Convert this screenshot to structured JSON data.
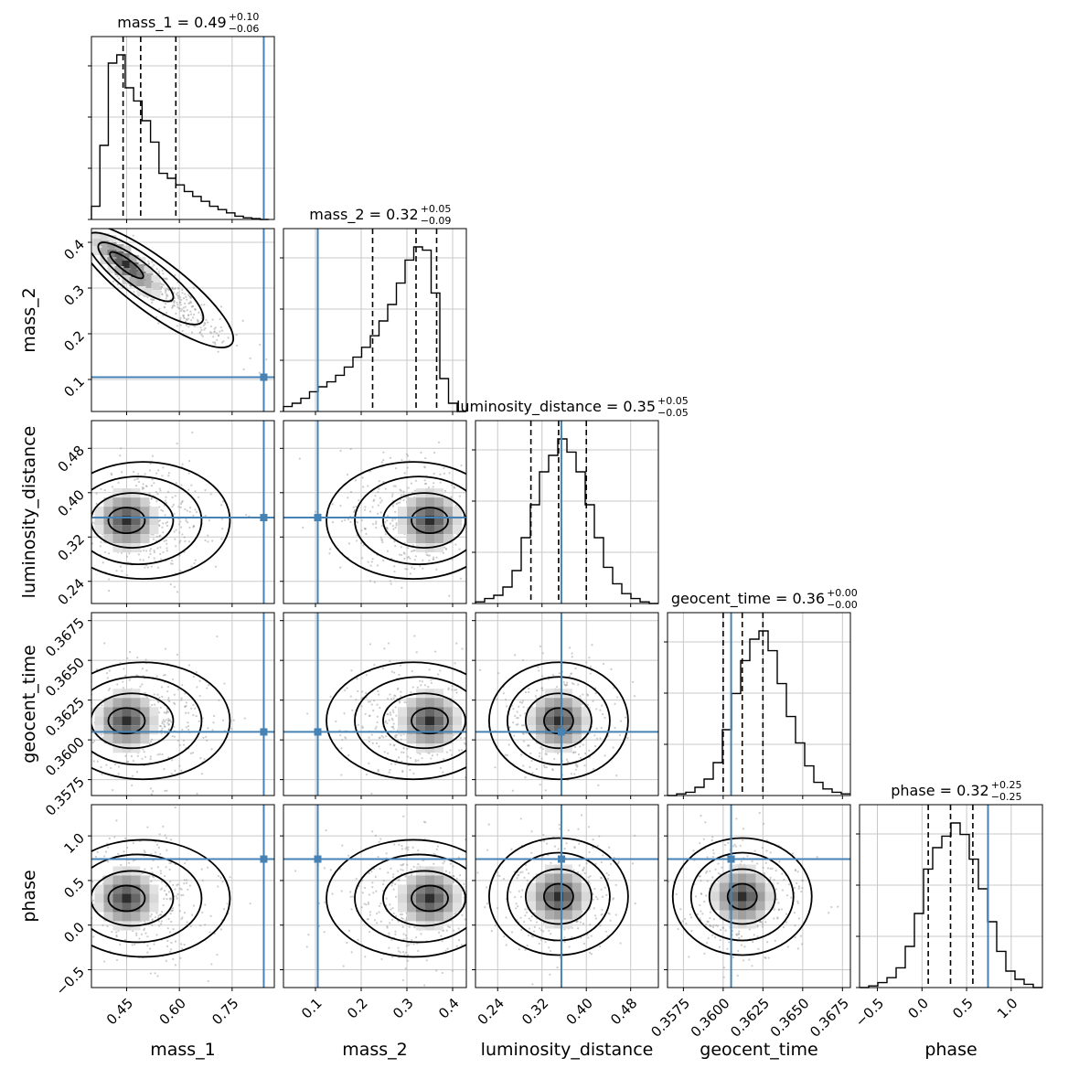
{
  "chart_data": {
    "type": "corner",
    "parameters": [
      "mass_1",
      "mass_2",
      "luminosity_distance",
      "geocent_time",
      "phase"
    ],
    "truth_color": "#4682b4",
    "grid": true,
    "titles": [
      {
        "param": "mass_1",
        "text": "mass_1 = 0.49",
        "plus": "+0.10",
        "minus": "−0.06"
      },
      {
        "param": "mass_2",
        "text": "mass_2 = 0.32",
        "plus": "+0.05",
        "minus": "−0.09"
      },
      {
        "param": "luminosity_distance",
        "text": "luminosity_distance = 0.35",
        "plus": "+0.05",
        "minus": "−0.05"
      },
      {
        "param": "geocent_time",
        "text": "geocent_time = 0.36",
        "plus": "+0.00",
        "minus": "−0.00"
      },
      {
        "param": "phase",
        "text": "phase = 0.32",
        "plus": "+0.25",
        "minus": "−0.25"
      }
    ],
    "ranges": [
      [
        0.35,
        0.87
      ],
      [
        0.03,
        0.43
      ],
      [
        0.2,
        0.53
      ],
      [
        0.3565,
        0.368
      ],
      [
        -0.7,
        1.35
      ]
    ],
    "truths": [
      0.84,
      0.105,
      0.355,
      0.3605,
      0.74
    ],
    "quantiles": [
      [
        0.44,
        0.49,
        0.59
      ],
      [
        0.225,
        0.32,
        0.365
      ],
      [
        0.3,
        0.35,
        0.4
      ],
      [
        0.36,
        0.3612,
        0.3625
      ],
      [
        0.07,
        0.32,
        0.57
      ]
    ],
    "ticks": [
      [
        "0.45",
        "0.60",
        "0.75"
      ],
      [
        "0.1",
        "0.2",
        "0.3",
        "0.4"
      ],
      [
        "0.24",
        "0.32",
        "0.40",
        "0.48"
      ],
      [
        "0.3575",
        "0.3600",
        "0.3625",
        "0.3650",
        "0.3675"
      ],
      [
        "−0.5",
        "0.0",
        "0.5",
        "1.0"
      ]
    ],
    "axis_labels": {
      "x": [
        "mass_1",
        "mass_2",
        "luminosity_distance",
        "geocent_time",
        "phase"
      ],
      "y": [
        "mass_2",
        "luminosity_distance",
        "geocent_time",
        "phase"
      ]
    },
    "histograms": [
      {
        "param": "mass_1",
        "edges_start": 0.35,
        "bin_width": 0.024,
        "counts": [
          0.08,
          0.45,
          0.95,
          1.0,
          0.8,
          0.72,
          0.6,
          0.47,
          0.28,
          0.25,
          0.21,
          0.17,
          0.14,
          0.11,
          0.08,
          0.06,
          0.04,
          0.02,
          0.01,
          0.005,
          0.0
        ]
      },
      {
        "param": "mass_2",
        "edges_start": 0.03,
        "bin_width": 0.019,
        "counts": [
          0.03,
          0.05,
          0.08,
          0.12,
          0.15,
          0.18,
          0.22,
          0.27,
          0.33,
          0.39,
          0.46,
          0.55,
          0.65,
          0.78,
          0.92,
          1.0,
          0.98,
          0.72,
          0.2,
          0.05,
          0.0
        ]
      },
      {
        "param": "luminosity_distance",
        "edges_start": 0.2,
        "bin_width": 0.0165,
        "counts": [
          0.01,
          0.03,
          0.05,
          0.1,
          0.2,
          0.4,
          0.6,
          0.8,
          0.9,
          1.0,
          0.92,
          0.8,
          0.6,
          0.4,
          0.22,
          0.12,
          0.06,
          0.03,
          0.01,
          0.0
        ]
      },
      {
        "param": "geocent_time",
        "edges_start": 0.3565,
        "bin_width": 0.000575,
        "counts": [
          0.0,
          0.01,
          0.02,
          0.05,
          0.1,
          0.2,
          0.4,
          0.62,
          0.82,
          0.95,
          1.0,
          0.88,
          0.68,
          0.48,
          0.32,
          0.18,
          0.08,
          0.04,
          0.02,
          0.01
        ]
      },
      {
        "param": "phase",
        "edges_start": -0.7,
        "bin_width": 0.1025,
        "counts": [
          0.0,
          0.01,
          0.03,
          0.06,
          0.12,
          0.25,
          0.45,
          0.72,
          0.85,
          0.92,
          1.0,
          0.93,
          0.78,
          0.6,
          0.4,
          0.22,
          0.1,
          0.05,
          0.02,
          0.0
        ]
      }
    ],
    "peaks": [
      {
        "x": "mass_1",
        "y": "mass_2",
        "peak": [
          0.45,
          0.35
        ]
      },
      {
        "x": "mass_1",
        "y": "luminosity_distance",
        "peak": [
          0.45,
          0.35
        ]
      },
      {
        "x": "mass_2",
        "y": "luminosity_distance",
        "peak": [
          0.35,
          0.35
        ]
      },
      {
        "x": "mass_1",
        "y": "geocent_time",
        "peak": [
          0.45,
          0.3612
        ]
      },
      {
        "x": "mass_2",
        "y": "geocent_time",
        "peak": [
          0.35,
          0.3612
        ]
      },
      {
        "x": "luminosity_distance",
        "y": "geocent_time",
        "peak": [
          0.35,
          0.3612
        ]
      },
      {
        "x": "mass_1",
        "y": "phase",
        "peak": [
          0.45,
          0.3
        ]
      },
      {
        "x": "mass_2",
        "y": "phase",
        "peak": [
          0.35,
          0.3
        ]
      },
      {
        "x": "luminosity_distance",
        "y": "phase",
        "peak": [
          0.35,
          0.32
        ]
      },
      {
        "x": "geocent_time",
        "y": "phase",
        "peak": [
          0.3612,
          0.32
        ]
      }
    ]
  }
}
